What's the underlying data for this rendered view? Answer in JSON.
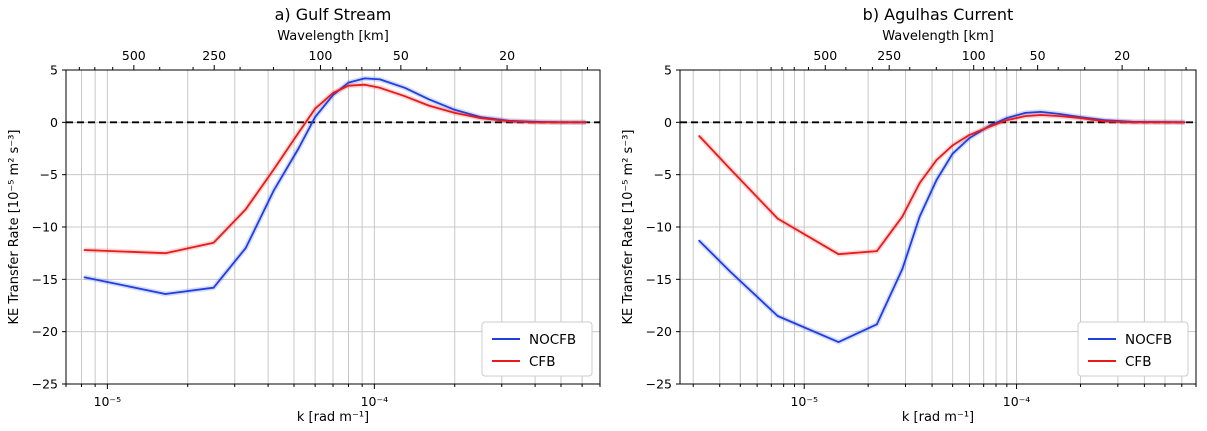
{
  "chart_data": [
    {
      "type": "line",
      "title": "a) Gulf Stream",
      "xlabel": "k [rad m⁻¹]",
      "ylabel": "KE Transfer Rate [10⁻⁵ m² s⁻³]",
      "top_xlabel": "Wavelength [km]",
      "xscale": "log",
      "xlim": [
        7e-06,
        0.0007
      ],
      "ylim": [
        -25,
        5
      ],
      "yticks": [
        5,
        0,
        -5,
        -10,
        -15,
        -20,
        -25
      ],
      "ytick_labels": [
        "5",
        "0",
        "−5",
        "−10",
        "−15",
        "−20",
        "−25"
      ],
      "xtick_labels": [
        "10⁻⁵",
        "10⁻⁴"
      ],
      "top_ticks": [
        500,
        250,
        100,
        50,
        20
      ],
      "zero_line": "dashed black",
      "grid": true,
      "legend": "lower-right",
      "series": [
        {
          "name": "NOCFB",
          "color": "#1f3fe0",
          "x": [
            8.2e-06,
            1.65e-05,
            2.5e-05,
            3.3e-05,
            4.2e-05,
            5.2e-05,
            6e-05,
            7e-05,
            8e-05,
            9.2e-05,
            0.000105,
            0.00013,
            0.00016,
            0.0002,
            0.00025,
            0.00032,
            0.0004,
            0.0005,
            0.00062
          ],
          "y": [
            -14.8,
            -16.4,
            -15.8,
            -12.0,
            -6.5,
            -2.5,
            0.5,
            2.6,
            3.8,
            4.2,
            4.1,
            3.3,
            2.2,
            1.2,
            0.5,
            0.15,
            0.05,
            0.0,
            0.0
          ]
        },
        {
          "name": "CFB",
          "color": "#e81a1a",
          "x": [
            8.2e-06,
            1.65e-05,
            2.5e-05,
            3.3e-05,
            4.2e-05,
            5.2e-05,
            6e-05,
            7e-05,
            8e-05,
            9.2e-05,
            0.000105,
            0.00013,
            0.00016,
            0.0002,
            0.00025,
            0.00032,
            0.0004,
            0.0005,
            0.00062
          ],
          "y": [
            -12.2,
            -12.5,
            -11.5,
            -8.3,
            -4.5,
            -1.0,
            1.3,
            2.8,
            3.5,
            3.6,
            3.3,
            2.5,
            1.6,
            0.9,
            0.4,
            0.1,
            0.0,
            0.0,
            0.0
          ]
        }
      ]
    },
    {
      "type": "line",
      "title": "b) Agulhas Current",
      "xlabel": "k [rad m⁻¹]",
      "ylabel": "KE Transfer Rate [10⁻⁵ m² s⁻³]",
      "top_xlabel": "Wavelength [km]",
      "xscale": "log",
      "xlim": [
        2.6e-06,
        0.0007
      ],
      "ylim": [
        -25,
        5
      ],
      "yticks": [
        5,
        0,
        -5,
        -10,
        -15,
        -20,
        -25
      ],
      "ytick_labels": [
        "5",
        "0",
        "−5",
        "−10",
        "−15",
        "−20",
        "−25"
      ],
      "xtick_labels": [
        "10⁻⁵",
        "10⁻⁴"
      ],
      "top_ticks": [
        500,
        250,
        100,
        50,
        20
      ],
      "zero_line": "dashed black",
      "grid": true,
      "legend": "lower-right",
      "series": [
        {
          "name": "NOCFB",
          "color": "#1f3fe0",
          "x": [
            3.2e-06,
            4.5e-06,
            7.5e-06,
            1.45e-05,
            2.2e-05,
            2.9e-05,
            3.5e-05,
            4.2e-05,
            5e-05,
            6e-05,
            7.5e-05,
            9e-05,
            0.00011,
            0.00013,
            0.00016,
            0.0002,
            0.00026,
            0.00035,
            0.00062
          ],
          "y": [
            -11.3,
            -14.3,
            -18.5,
            -21.0,
            -19.3,
            -14.0,
            -9.0,
            -5.5,
            -3.0,
            -1.5,
            -0.3,
            0.4,
            0.9,
            1.0,
            0.8,
            0.5,
            0.2,
            0.05,
            0.0
          ]
        },
        {
          "name": "CFB",
          "color": "#e81a1a",
          "x": [
            3.2e-06,
            4.5e-06,
            7.5e-06,
            1.45e-05,
            2.2e-05,
            2.9e-05,
            3.5e-05,
            4.2e-05,
            5e-05,
            6e-05,
            7.5e-05,
            9e-05,
            0.00011,
            0.00013,
            0.00016,
            0.0002,
            0.00026,
            0.00035,
            0.00062
          ],
          "y": [
            -1.3,
            -4.5,
            -9.2,
            -12.6,
            -12.3,
            -9.0,
            -5.8,
            -3.6,
            -2.2,
            -1.2,
            -0.4,
            0.2,
            0.6,
            0.7,
            0.6,
            0.4,
            0.1,
            0.0,
            0.0
          ]
        }
      ]
    }
  ]
}
